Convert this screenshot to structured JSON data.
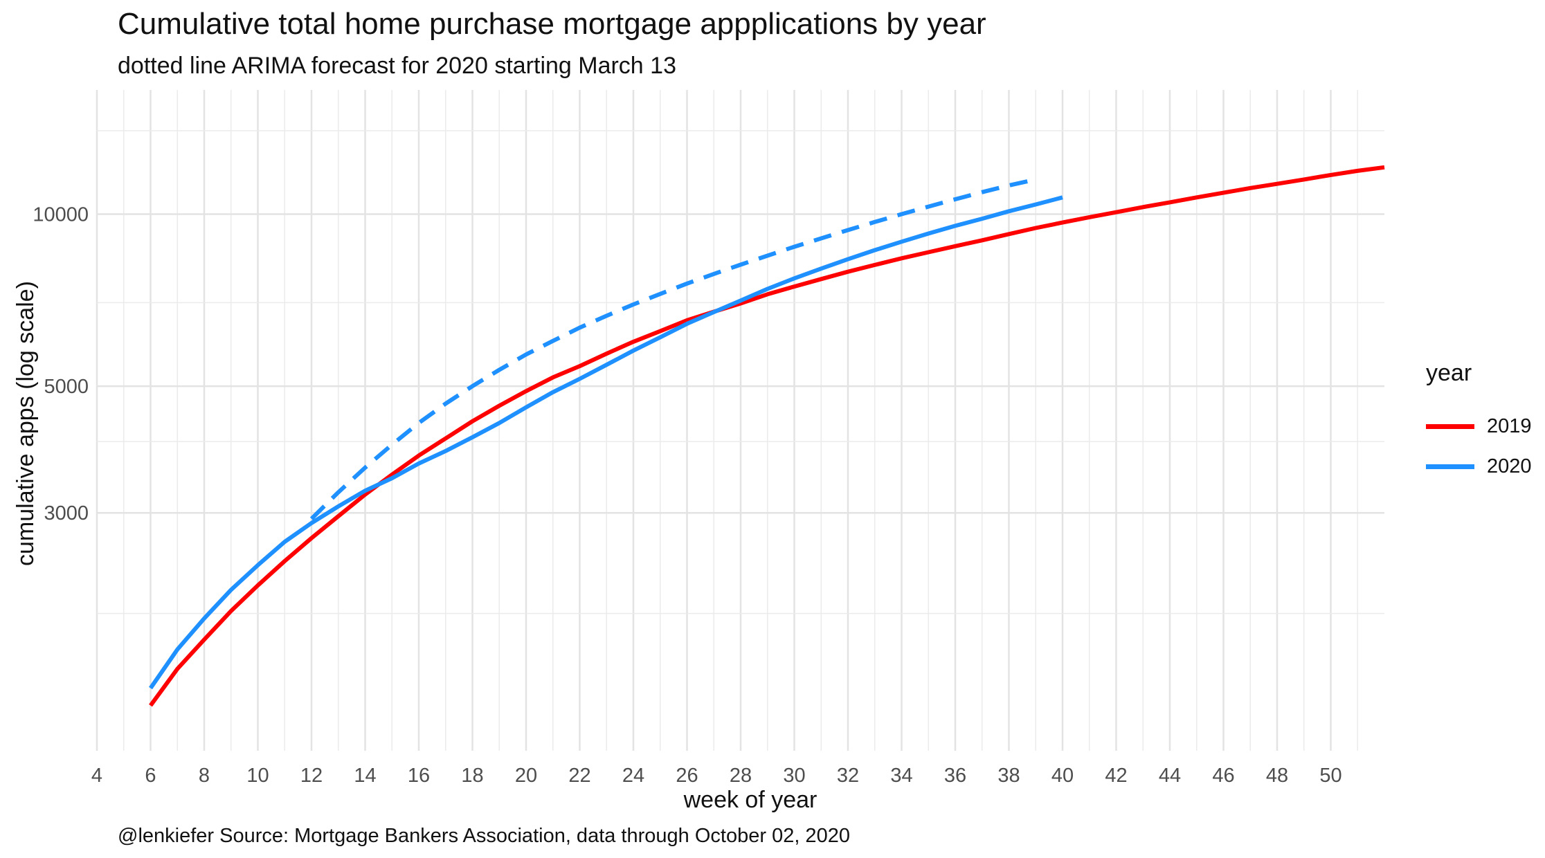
{
  "chart_data": {
    "type": "line",
    "title": "Cumulative total home purchase mortgage appplications by year",
    "subtitle": "dotted line ARIMA forecast for 2020 starting March 13",
    "caption": "@lenkiefer Source: Mortgage Bankers Association, data through October 02, 2020",
    "xlabel": "week of year",
    "ylabel": "cumulative apps (log scale)",
    "y_scale": "log",
    "xlim": [
      4,
      52
    ],
    "ylim": [
      1150,
      16500
    ],
    "x_ticks": [
      4,
      6,
      8,
      10,
      12,
      14,
      16,
      18,
      20,
      22,
      24,
      26,
      28,
      30,
      32,
      34,
      36,
      38,
      40,
      42,
      44,
      46,
      48,
      50
    ],
    "y_ticks": [
      3000,
      5000,
      10000
    ],
    "y_minor_ticks": [
      2000,
      4000,
      7000,
      14000
    ],
    "grid": true,
    "legend": {
      "title": "year",
      "position": "right"
    },
    "series": [
      {
        "name": "2019",
        "color": "#ff0000",
        "style": "solid",
        "x": [
          6,
          7,
          8,
          9,
          10,
          11,
          12,
          13,
          14,
          15,
          16,
          17,
          18,
          19,
          20,
          21,
          22,
          23,
          24,
          25,
          26,
          27,
          28,
          29,
          30,
          31,
          32,
          33,
          34,
          35,
          36,
          37,
          38,
          39,
          40,
          41,
          42,
          43,
          44,
          45,
          46,
          47,
          48,
          49,
          50,
          51,
          52
        ],
        "values": [
          1380,
          1600,
          1800,
          2020,
          2240,
          2470,
          2710,
          2960,
          3230,
          3500,
          3780,
          4050,
          4340,
          4620,
          4900,
          5180,
          5420,
          5700,
          5980,
          6240,
          6520,
          6750,
          6980,
          7240,
          7470,
          7700,
          7930,
          8150,
          8370,
          8580,
          8790,
          9000,
          9230,
          9460,
          9670,
          9880,
          10080,
          10290,
          10490,
          10700,
          10900,
          11110,
          11300,
          11500,
          11710,
          11910,
          12080
        ]
      },
      {
        "name": "2020",
        "color": "#1e90ff",
        "style": "solid",
        "x": [
          6,
          7,
          8,
          9,
          10,
          11,
          12,
          13,
          14,
          15,
          16,
          17,
          18,
          19,
          20,
          21,
          22,
          23,
          24,
          25,
          26,
          27,
          28,
          29,
          30,
          31,
          32,
          33,
          34,
          35,
          36,
          37,
          38,
          39,
          40
        ],
        "values": [
          1480,
          1730,
          1960,
          2200,
          2430,
          2670,
          2880,
          3080,
          3280,
          3450,
          3660,
          3850,
          4070,
          4310,
          4590,
          4880,
          5150,
          5450,
          5770,
          6090,
          6430,
          6740,
          7060,
          7400,
          7720,
          8030,
          8340,
          8650,
          8950,
          9250,
          9540,
          9820,
          10120,
          10400,
          10700
        ]
      },
      {
        "name": "2020 forecast",
        "color": "#1e90ff",
        "style": "dashed",
        "x": [
          12,
          13,
          14,
          15,
          16,
          17,
          18,
          19,
          20,
          21,
          22,
          23,
          24,
          25,
          26,
          27,
          28,
          29,
          30,
          31,
          32,
          33,
          34,
          35,
          36,
          37,
          38,
          39
        ],
        "values": [
          2930,
          3260,
          3600,
          3950,
          4310,
          4660,
          5000,
          5340,
          5680,
          6000,
          6330,
          6640,
          6950,
          7250,
          7560,
          7860,
          8160,
          8460,
          8770,
          9070,
          9380,
          9690,
          10000,
          10310,
          10620,
          10930,
          11230,
          11500
        ]
      }
    ]
  }
}
